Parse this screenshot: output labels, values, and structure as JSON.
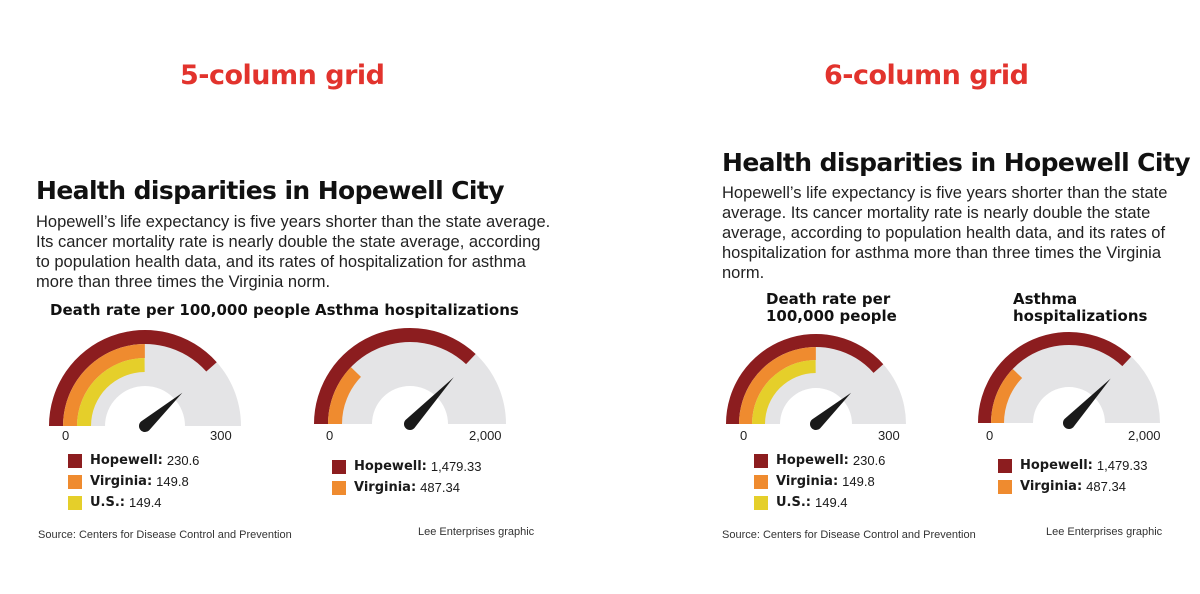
{
  "labels": {
    "left_grid": "5-column grid",
    "right_grid": "6-column grid"
  },
  "headline": "Health disparities in Hopewell City",
  "deck": "Hopewell’s life expectancy is five years shorter than the state average. Its cancer mortality rate is nearly double the state average, according to population health data, and its rates of hospitalization for asthma more than three times the Virginia norm.",
  "source": "Source: Centers for Disease Control and Prevention",
  "credit": "Lee Enterprises graphic",
  "colors": {
    "title_red": "#e2332d",
    "track": "#e4e4e6",
    "needle": "#1a1a1a"
  },
  "chart_data": [
    {
      "type": "gauge",
      "title": "Death rate per 100,000 people",
      "range": [
        0,
        300
      ],
      "tick_labels": [
        "0",
        "300"
      ],
      "needle_value": 230.6,
      "series": [
        {
          "name": "Hopewell:",
          "value": 230.6,
          "display": "230.6",
          "color": "#8c1d1f"
        },
        {
          "name": "Virginia:",
          "value": 149.8,
          "display": "149.8",
          "color": "#ef8b2f"
        },
        {
          "name": "U.S.:",
          "value": 149.4,
          "display": "149.4",
          "color": "#e5cf2a"
        }
      ]
    },
    {
      "type": "gauge",
      "title": "Asthma hospitalizations",
      "range": [
        0,
        2000
      ],
      "tick_labels": [
        "0",
        "2,000"
      ],
      "needle_value": 1479.33,
      "series": [
        {
          "name": "Hopewell:",
          "value": 1479.33,
          "display": "1,479.33",
          "color": "#8c1d1f"
        },
        {
          "name": "Virginia:",
          "value": 487.34,
          "display": "487.34",
          "color": "#ef8b2f"
        }
      ]
    }
  ],
  "six_col_titles": [
    "Death rate per\n100,000 people",
    "Asthma\nhospitalizations"
  ]
}
